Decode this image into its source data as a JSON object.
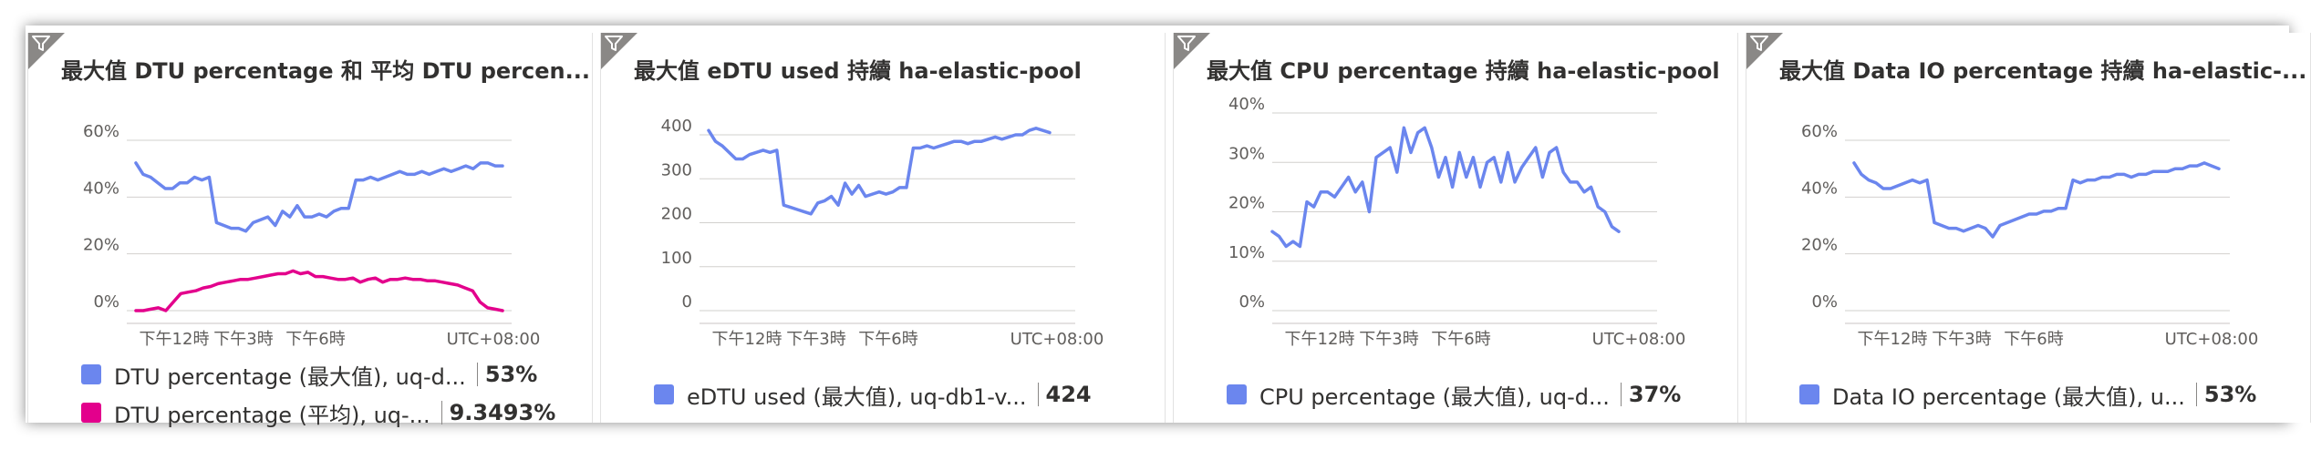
{
  "colors": {
    "blue": "#6b86ee",
    "pink": "#e3008c"
  },
  "x_ticks": [
    "下午12時",
    "下午3時",
    "下午6時"
  ],
  "timezone": "UTC+08:00",
  "tiles": [
    {
      "title": "最大值 DTU percentage 和 平均 DTU percen...",
      "legend": [
        {
          "name": "DTU percentage (最大值), uq-d...",
          "value": "53%"
        },
        {
          "name": "DTU percentage (平均), uq-...",
          "value": "9.3493%"
        }
      ]
    },
    {
      "title": "最大值 eDTU used 持續 ha-elastic-pool",
      "legend": [
        {
          "name": "eDTU used (最大值), uq-db1-v...",
          "value": "424"
        }
      ]
    },
    {
      "title": "最大值 CPU percentage 持續 ha-elastic-pool",
      "legend": [
        {
          "name": "CPU percentage (最大值), uq-d...",
          "value": "37%"
        }
      ]
    },
    {
      "title": "最大值 Data IO percentage 持續 ha-elastic-...",
      "legend": [
        {
          "name": "Data IO percentage (最大值), u...",
          "value": "53%"
        }
      ]
    }
  ],
  "chart_data": [
    {
      "type": "line",
      "x_tick_labels": [
        "下午12時",
        "下午3時",
        "下午6時"
      ],
      "y_tick_labels": [
        "0%",
        "20%",
        "40%",
        "60%"
      ],
      "ylim": [
        0,
        60
      ],
      "grid": true,
      "legend": "bottom",
      "series": [
        {
          "name": "DTU percentage (最大值), uq-d...",
          "values": [
            52,
            48,
            47,
            45,
            43,
            43,
            45,
            45,
            47,
            46,
            47,
            31,
            30,
            29,
            29,
            28,
            31,
            32,
            33,
            30,
            35,
            33,
            37,
            33,
            33,
            34,
            33,
            35,
            36,
            36,
            46,
            46,
            47,
            46,
            47,
            48,
            49,
            48,
            48,
            49,
            48,
            49,
            50,
            49,
            50,
            51,
            50,
            52,
            52,
            51,
            51
          ]
        },
        {
          "name": "DTU percentage (平均), uq-...",
          "values": [
            0,
            0,
            0.5,
            1,
            0,
            3,
            6,
            6.5,
            7,
            8,
            8.5,
            9.5,
            10,
            10.5,
            11,
            11,
            11.5,
            12,
            12.5,
            13,
            13,
            14,
            13,
            13.5,
            12,
            12,
            11.5,
            11,
            11,
            11.5,
            10,
            11,
            11.5,
            10,
            11,
            11,
            11.5,
            11,
            11,
            10.5,
            10.5,
            10,
            9.5,
            9,
            8,
            7,
            3,
            1,
            0.5,
            0
          ]
        }
      ]
    },
    {
      "type": "line",
      "x_tick_labels": [
        "下午12時",
        "下午3時",
        "下午6時"
      ],
      "y_tick_labels": [
        "0",
        "100",
        "200",
        "300",
        "400"
      ],
      "ylim": [
        0,
        420
      ],
      "grid": true,
      "legend": "bottom",
      "series": [
        {
          "name": "eDTU used (最大值), uq-db1-v...",
          "values": [
            410,
            385,
            375,
            360,
            345,
            345,
            355,
            360,
            365,
            360,
            365,
            240,
            235,
            230,
            225,
            220,
            245,
            250,
            260,
            240,
            290,
            265,
            285,
            260,
            265,
            270,
            265,
            270,
            280,
            280,
            370,
            370,
            375,
            370,
            375,
            380,
            385,
            385,
            380,
            385,
            385,
            390,
            395,
            390,
            395,
            400,
            400,
            410,
            415,
            410,
            405
          ]
        }
      ]
    },
    {
      "type": "line",
      "x_tick_labels": [
        "下午12時",
        "下午3時",
        "下午6時"
      ],
      "y_tick_labels": [
        "0%",
        "10%",
        "20%",
        "30%",
        "40%"
      ],
      "ylim": [
        0,
        40
      ],
      "grid": true,
      "legend": "bottom",
      "series": [
        {
          "name": "CPU percentage (最大值), uq-d...",
          "values": [
            16,
            15,
            13,
            14,
            13,
            22,
            21,
            24,
            24,
            23,
            25,
            27,
            24,
            26,
            20,
            31,
            32,
            33,
            28,
            37,
            32,
            36,
            37,
            33,
            27,
            31,
            25,
            32,
            27,
            31,
            25,
            30,
            31,
            26,
            32,
            26,
            29,
            31,
            33,
            27,
            32,
            33,
            28,
            26,
            26,
            24,
            25,
            21,
            20,
            17,
            16
          ]
        }
      ]
    },
    {
      "type": "line",
      "x_tick_labels": [
        "下午12時",
        "下午3時",
        "下午6時"
      ],
      "y_tick_labels": [
        "0%",
        "20%",
        "40%",
        "60%"
      ],
      "ylim": [
        0,
        60
      ],
      "grid": true,
      "legend": "bottom",
      "series": [
        {
          "name": "Data IO percentage (最大值), u...",
          "values": [
            52,
            48,
            46,
            45,
            43,
            43,
            44,
            45,
            46,
            45,
            46,
            31,
            30,
            29,
            29,
            28,
            29,
            30,
            29,
            26,
            30,
            31,
            32,
            33,
            34,
            34,
            35,
            35,
            36,
            36,
            46,
            45,
            46,
            46,
            47,
            47,
            48,
            48,
            47,
            48,
            48,
            49,
            49,
            49,
            50,
            50,
            51,
            51,
            52,
            51,
            50
          ]
        }
      ]
    }
  ]
}
